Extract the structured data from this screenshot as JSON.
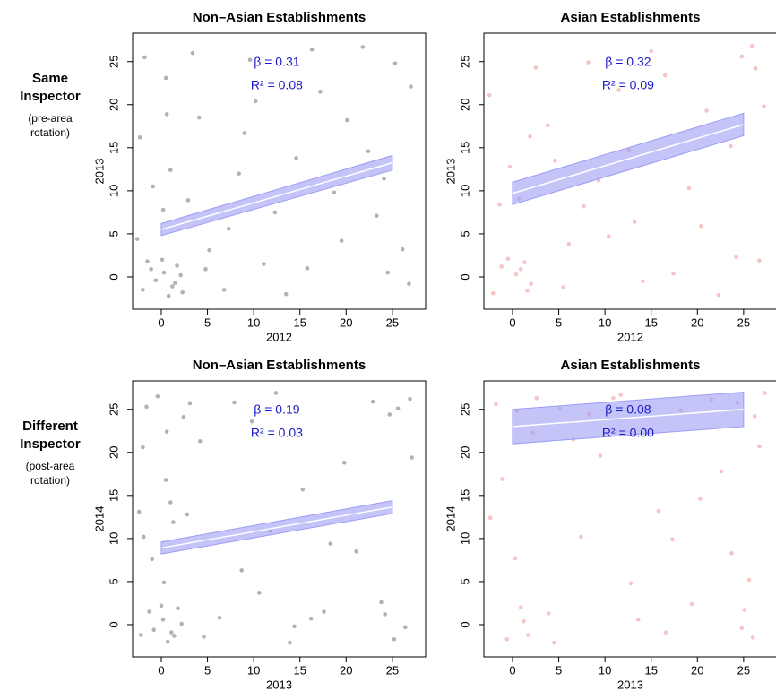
{
  "chart_data": [
    {
      "type": "scatter",
      "title": "Non–Asian Establishments",
      "row_label": "Same Inspector",
      "row_note": "(pre-area rotation)",
      "xlabel": "2012",
      "ylabel": "2013",
      "annotations": [
        "β = 0.31",
        "R² = 0.08"
      ],
      "xlim": [
        -3.1,
        28.6
      ],
      "ylim": [
        -3.75,
        28.3
      ],
      "xticks": [
        0,
        5,
        10,
        15,
        20,
        25
      ],
      "yticks": [
        0,
        5,
        10,
        15,
        20,
        25
      ],
      "points": {
        "color": "#555555",
        "x": [
          0.3,
          1.2,
          -1.5,
          2.1,
          0.8,
          -0.6,
          1.7,
          -2.0,
          0.1,
          1.5,
          -1.1,
          2.3,
          5.2,
          8.4,
          12.3,
          15.8,
          20.1,
          24.5,
          25.3,
          26.1,
          3.4,
          -1.8,
          0.5,
          10.2,
          18.7,
          22.4,
          6.8,
          13.5,
          -0.9,
          1.0,
          0.2,
          -2.3,
          4.1,
          9.6,
          16.3,
          27.0,
          24.1,
          19.5,
          11.1,
          7.3,
          2.9,
          14.6,
          21.8,
          26.8,
          -2.6,
          0.6,
          17.2,
          23.3,
          9.0,
          4.8
        ],
        "y": [
          0.5,
          -1.1,
          1.8,
          0.2,
          -2.2,
          -0.4,
          1.3,
          -1.5,
          2.0,
          -0.7,
          0.9,
          -1.8,
          3.1,
          12.0,
          7.5,
          1.0,
          18.2,
          0.5,
          24.8,
          3.2,
          26.0,
          25.5,
          23.1,
          20.4,
          9.8,
          14.6,
          -1.5,
          -2.0,
          10.5,
          12.4,
          7.8,
          16.2,
          18.5,
          25.2,
          26.4,
          22.1,
          11.4,
          4.2,
          1.5,
          5.6,
          8.9,
          13.8,
          26.7,
          -0.8,
          4.4,
          18.9,
          21.5,
          7.1,
          16.7,
          0.9
        ]
      },
      "fit": {
        "color": "#ffffff",
        "band_color": "#9c9cf5",
        "x": [
          0,
          25
        ],
        "y": [
          5.5,
          13.25
        ],
        "lower": [
          4.8,
          12.4
        ],
        "upper": [
          6.2,
          14.1
        ]
      }
    },
    {
      "type": "scatter",
      "title": "Asian Establishments",
      "xlabel": "2012",
      "ylabel": "2013",
      "annotations": [
        "β = 0.32",
        "R² = 0.09"
      ],
      "xlim": [
        -3.1,
        28.6
      ],
      "ylim": [
        -3.75,
        28.3
      ],
      "xticks": [
        0,
        5,
        10,
        15,
        20,
        25
      ],
      "yticks": [
        0,
        5,
        10,
        15,
        20,
        25
      ],
      "points": {
        "color": "#f07a7a",
        "x": [
          0.4,
          1.6,
          -1.2,
          2.0,
          -0.5,
          0.9,
          -2.1,
          1.3,
          6.1,
          9.3,
          13.2,
          17.4,
          21.0,
          24.8,
          25.9,
          26.7,
          2.5,
          -1.4,
          11.5,
          19.1,
          23.6,
          5.5,
          14.1,
          -0.3,
          0.7,
          8.2,
          16.5,
          26.3,
          24.2,
          3.8,
          12.6,
          20.4,
          7.7,
          -2.5,
          1.9,
          15.0,
          22.3,
          10.4,
          27.2,
          4.6
        ],
        "y": [
          0.3,
          -1.6,
          1.2,
          -0.8,
          2.1,
          0.9,
          -1.9,
          1.7,
          3.8,
          11.2,
          6.4,
          0.4,
          19.3,
          25.6,
          26.8,
          1.9,
          24.3,
          8.4,
          21.7,
          10.3,
          15.2,
          -1.2,
          -0.5,
          12.8,
          9.1,
          24.9,
          23.4,
          24.2,
          2.3,
          17.6,
          14.7,
          5.9,
          8.2,
          21.1,
          16.3,
          26.2,
          -2.1,
          4.7,
          19.8,
          13.5
        ]
      },
      "fit": {
        "color": "#ffffff",
        "band_color": "#9c9cf5",
        "x": [
          0,
          25
        ],
        "y": [
          9.7,
          17.7
        ],
        "lower": [
          8.4,
          16.4
        ],
        "upper": [
          11.0,
          19.0
        ]
      }
    },
    {
      "type": "scatter",
      "title": "Non–Asian Establishments",
      "row_label": "Different Inspector",
      "row_note": "(post-area rotation)",
      "xlabel": "2013",
      "ylabel": "2014",
      "annotations": [
        "β = 0.19",
        "R² = 0.03"
      ],
      "xlim": [
        -3.1,
        28.6
      ],
      "ylim": [
        -3.75,
        28.3
      ],
      "xticks": [
        0,
        5,
        10,
        15,
        20,
        25
      ],
      "yticks": [
        0,
        5,
        10,
        15,
        20,
        25
      ],
      "points": {
        "color": "#555555",
        "x": [
          0.2,
          1.4,
          -1.3,
          2.2,
          0.7,
          -0.8,
          1.8,
          -2.2,
          0.0,
          1.1,
          -1.6,
          2.4,
          -0.4,
          1.0,
          -2.0,
          0.5,
          4.6,
          7.9,
          11.8,
          16.2,
          19.8,
          24.2,
          25.6,
          26.4,
          3.1,
          -1.9,
          0.6,
          9.8,
          18.3,
          22.9,
          6.3,
          13.9,
          -1.0,
          1.3,
          0.3,
          -2.4,
          24.7,
          25.2,
          26.9,
          23.8,
          12.4,
          8.7,
          15.3,
          21.1,
          4.2,
          17.6,
          10.6,
          2.8,
          27.1,
          14.4
        ],
        "y": [
          0.6,
          -1.3,
          1.5,
          0.1,
          -2.0,
          -0.6,
          1.9,
          -1.2,
          2.2,
          -0.9,
          25.3,
          24.1,
          26.5,
          14.2,
          20.6,
          16.8,
          -1.4,
          25.8,
          10.9,
          0.7,
          18.8,
          1.2,
          25.1,
          -0.3,
          25.7,
          10.2,
          22.4,
          23.6,
          9.4,
          25.9,
          0.8,
          -2.1,
          7.6,
          11.9,
          4.9,
          13.1,
          24.4,
          -1.7,
          26.2,
          2.6,
          26.9,
          6.3,
          15.7,
          8.5,
          21.3,
          1.5,
          3.7,
          12.8,
          19.4,
          -0.2
        ]
      },
      "fit": {
        "color": "#ffffff",
        "band_color": "#9c9cf5",
        "x": [
          0,
          25
        ],
        "y": [
          8.9,
          13.65
        ],
        "lower": [
          8.2,
          12.9
        ],
        "upper": [
          9.6,
          14.4
        ]
      }
    },
    {
      "type": "scatter",
      "title": "Asian Establishments",
      "xlabel": "2013",
      "ylabel": "2014",
      "annotations": [
        "β = 0.08",
        "R² = 0.00"
      ],
      "xlim": [
        -3.1,
        28.6
      ],
      "ylim": [
        -3.75,
        28.3
      ],
      "xticks": [
        0,
        5,
        10,
        15,
        20,
        25
      ],
      "yticks": [
        0,
        5,
        10,
        15,
        20,
        25
      ],
      "points": {
        "color": "#f07a7a",
        "x": [
          -1.8,
          0.5,
          2.6,
          5.1,
          8.3,
          11.7,
          14.9,
          18.2,
          21.5,
          24.3,
          26.2,
          27.3,
          1.2,
          -0.6,
          3.9,
          7.4,
          12.8,
          16.6,
          20.3,
          23.7,
          25.1,
          0.9,
          1.7,
          -1.1,
          2.2,
          9.5,
          13.6,
          24.8,
          25.6,
          26.7,
          -2.4,
          4.5,
          10.9,
          19.4,
          22.6,
          0.3,
          6.6,
          15.8,
          26.0,
          17.3
        ],
        "y": [
          25.6,
          24.8,
          26.3,
          25.1,
          24.4,
          26.7,
          25.3,
          24.9,
          26.1,
          25.8,
          24.2,
          26.9,
          0.4,
          -1.7,
          1.3,
          10.2,
          4.8,
          -0.9,
          14.6,
          8.3,
          1.7,
          2.0,
          -1.2,
          16.9,
          22.3,
          19.6,
          0.6,
          -0.4,
          5.2,
          20.7,
          12.4,
          -2.1,
          26.3,
          2.4,
          17.8,
          7.7,
          21.5,
          13.2,
          -1.5,
          9.9
        ]
      },
      "fit": {
        "color": "#ffffff",
        "band_color": "#9c9cf5",
        "x": [
          0,
          25
        ],
        "y": [
          23.0,
          25.0
        ],
        "lower": [
          21.0,
          23.0
        ],
        "upper": [
          25.0,
          27.0
        ]
      }
    }
  ]
}
